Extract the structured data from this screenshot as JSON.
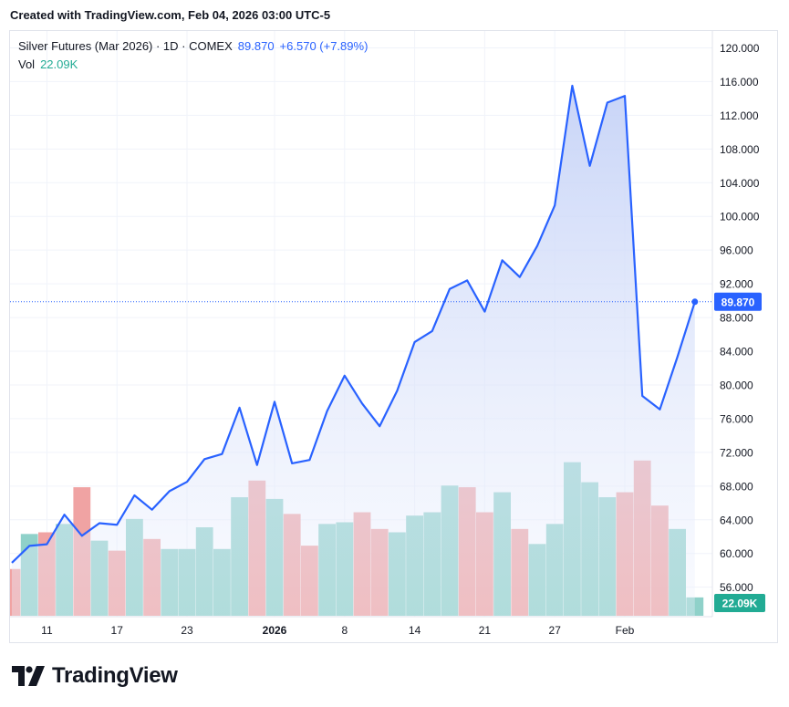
{
  "header": {
    "created_text": "Created with TradingView.com, Feb 04, 2026 03:00 UTC-5"
  },
  "legend": {
    "symbol": "Silver Futures (Mar 2026) · 1D · COMEX",
    "price": "89.870",
    "change": "+6.570 (+7.89%)",
    "vol_label": "Vol",
    "vol_value": "22.09K"
  },
  "brand": {
    "name": "TradingView"
  },
  "colors": {
    "line": "#2962ff",
    "area_top": "#c5d2f7",
    "vol_up": "#8fd1c9",
    "vol_down": "#f0a3a3",
    "label_price": "#2962ff",
    "label_vol": "#22ab94",
    "grid": "#f0f3fa"
  },
  "chart_data": {
    "type": "area",
    "title": "Silver Futures (Mar 2026) · 1D · COMEX",
    "y_axis": {
      "ticks": [
        "56.000",
        "60.000",
        "64.000",
        "68.000",
        "72.000",
        "76.000",
        "80.000",
        "84.000",
        "88.000",
        "92.000",
        "96.000",
        "100.000",
        "104.000",
        "108.000",
        "112.000",
        "116.000",
        "120.000"
      ],
      "range": [
        52.5,
        122.0
      ]
    },
    "x_axis": {
      "labels": [
        {
          "text": "11",
          "index": 2,
          "bold": false
        },
        {
          "text": "17",
          "index": 6,
          "bold": false
        },
        {
          "text": "23",
          "index": 10,
          "bold": false
        },
        {
          "text": "2026",
          "index": 15,
          "bold": true
        },
        {
          "text": "8",
          "index": 19,
          "bold": false
        },
        {
          "text": "14",
          "index": 23,
          "bold": false
        },
        {
          "text": "21",
          "index": 27,
          "bold": false
        },
        {
          "text": "27",
          "index": 31,
          "bold": false
        },
        {
          "text": "Feb",
          "index": 35,
          "bold": false
        }
      ]
    },
    "series": [
      {
        "name": "Close",
        "values": [
          58.9,
          60.9,
          61.1,
          64.6,
          62.1,
          63.6,
          63.4,
          66.9,
          65.2,
          67.4,
          68.5,
          71.2,
          71.8,
          77.3,
          70.5,
          78.0,
          70.7,
          71.1,
          76.9,
          81.1,
          77.8,
          75.1,
          79.3,
          85.1,
          86.4,
          91.4,
          92.4,
          88.7,
          94.8,
          92.8,
          96.5,
          101.3,
          115.5,
          106.0,
          113.5,
          114.3,
          78.7,
          77.1,
          83.3,
          89.87
        ]
      }
    ],
    "volume": {
      "scale_max": 100,
      "values": [
        28,
        49,
        50,
        55,
        77,
        45,
        39,
        58,
        46,
        40,
        40,
        53,
        40,
        71,
        81,
        70,
        61,
        42,
        55,
        56,
        62,
        52,
        50,
        60,
        62,
        78,
        77,
        62,
        74,
        52,
        43,
        55,
        92,
        80,
        71,
        74,
        93,
        66,
        52,
        11
      ],
      "up": [
        false,
        true,
        false,
        true,
        false,
        true,
        false,
        true,
        false,
        true,
        true,
        true,
        true,
        true,
        false,
        true,
        false,
        false,
        true,
        true,
        false,
        false,
        true,
        true,
        true,
        true,
        false,
        false,
        true,
        false,
        true,
        true,
        true,
        true,
        true,
        false,
        false,
        false,
        true,
        true
      ]
    },
    "last_price": 89.87,
    "last_price_label": "89.870",
    "last_volume_label": "22.09K"
  }
}
